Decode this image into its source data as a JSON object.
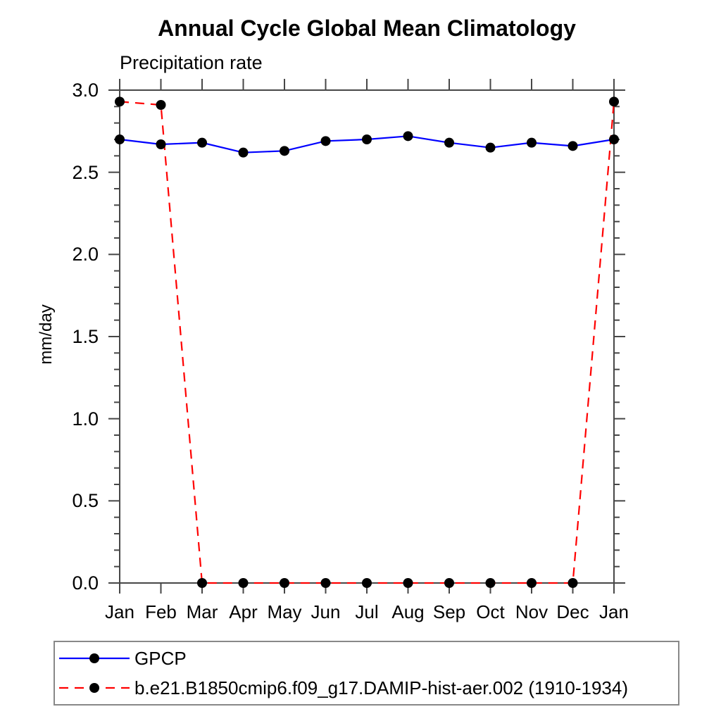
{
  "chart_data": {
    "type": "line",
    "title": "Annual Cycle Global Mean Climatology",
    "subtitle": "Precipitation rate",
    "ylabel": "mm/day",
    "xlabel": "",
    "categories": [
      "Jan",
      "Feb",
      "Mar",
      "Apr",
      "May",
      "Jun",
      "Jul",
      "Aug",
      "Sep",
      "Oct",
      "Nov",
      "Dec",
      "Jan"
    ],
    "ylim": [
      0.0,
      3.0
    ],
    "yticks": [
      0.0,
      0.5,
      1.0,
      1.5,
      2.0,
      2.5,
      3.0
    ],
    "ytick_labels": [
      "0.0",
      "0.5",
      "1.0",
      "1.5",
      "2.0",
      "2.5",
      "3.0"
    ],
    "minor_tick_step": 0.1,
    "grid": false,
    "tick_style": "outward-all-four-sides",
    "legend_position": "bottom-left-box",
    "axis_color": "#474747",
    "text_color": "#000000",
    "background": "#ffffff",
    "series": [
      {
        "name": "GPCP",
        "color": "#0000ff",
        "line_style": "solid",
        "marker": "circle",
        "marker_color": "#000000",
        "values": [
          2.7,
          2.67,
          2.68,
          2.62,
          2.63,
          2.69,
          2.7,
          2.72,
          2.68,
          2.65,
          2.68,
          2.66,
          2.7
        ]
      },
      {
        "name": "b.e21.B1850cmip6.f09_g17.DAMIP-hist-aer.002 (1910-1934)",
        "color": "#ff0000",
        "line_style": "dashed",
        "marker": "circle",
        "marker_color": "#000000",
        "values": [
          2.93,
          2.91,
          0.0,
          0.0,
          0.0,
          0.0,
          0.0,
          0.0,
          0.0,
          0.0,
          0.0,
          0.0,
          2.93
        ]
      }
    ]
  }
}
